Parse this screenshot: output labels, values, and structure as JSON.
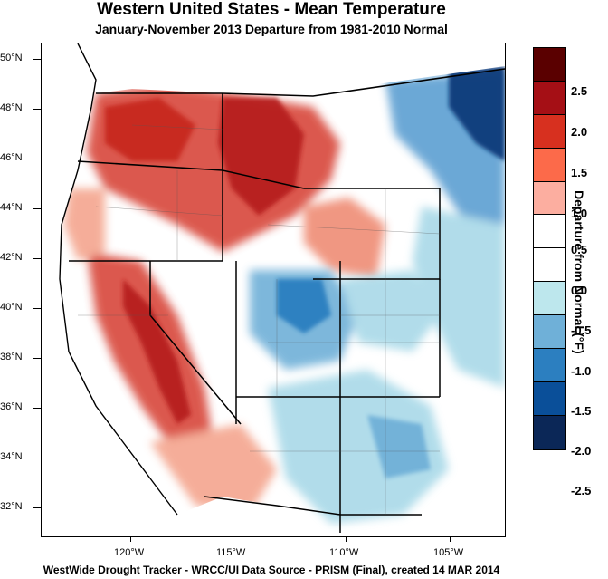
{
  "title": "Western United States - Mean Temperature",
  "subtitle": "January-November 2013  Departure from 1981-2010 Normal",
  "footer": "WestWide Drought Tracker - WRCC/UI  Data Source - PRISM (Final), created 14 MAR 2014",
  "map": {
    "latitude_labels": [
      "50°N",
      "48°N",
      "46°N",
      "44°N",
      "42°N",
      "40°N",
      "38°N",
      "36°N",
      "34°N",
      "32°N"
    ],
    "longitude_labels": [
      "120°W",
      "115°W",
      "110°W",
      "105°W"
    ]
  },
  "colorbar": {
    "title": "Departure from Normal (°F)",
    "tick_labels": [
      "2.5",
      "2.0",
      "1.5",
      "1.0",
      "0.5",
      "0.0",
      "-0.5",
      "-1.0",
      "-1.5",
      "-2.0",
      "-2.5"
    ],
    "colors": [
      "#5a0000",
      "#a50f15",
      "#d7301f",
      "#fc6a4a",
      "#fcaea0",
      "#ffffff",
      "#ffffff",
      "#bde7ed",
      "#6fb0d8",
      "#2c7fc0",
      "#0a4f99",
      "#0b2757"
    ]
  },
  "colors": {
    "warm_strong": "#c6261f",
    "warm_light": "#f4a58e",
    "cool_light": "#a9d9e8",
    "cool_strong": "#1e63ae",
    "cool_deep": "#0b3a7a"
  }
}
